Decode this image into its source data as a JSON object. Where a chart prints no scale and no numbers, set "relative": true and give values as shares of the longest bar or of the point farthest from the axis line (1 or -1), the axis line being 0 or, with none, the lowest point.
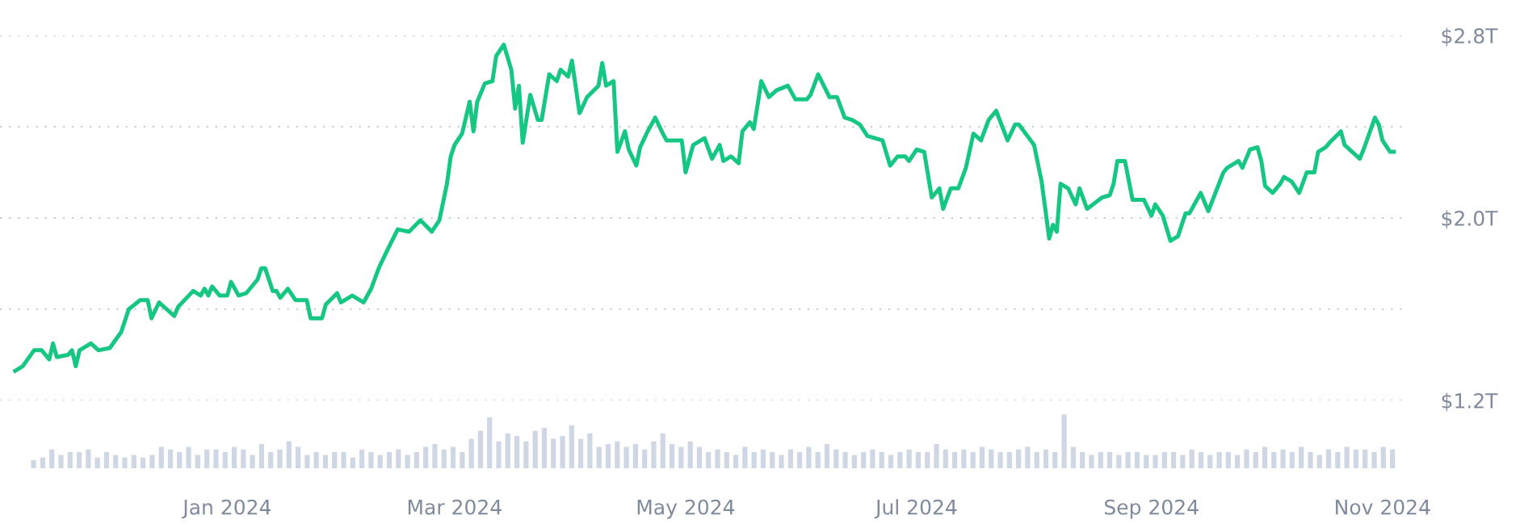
{
  "chart_data": [
    {
      "type": "line",
      "series": [
        {
          "color": "#16c784",
          "x": [
            "2023-11-06",
            "2023-11-08",
            "2023-11-11",
            "2023-11-13",
            "2023-11-15",
            "2023-11-16",
            "2023-11-17",
            "2023-11-20",
            "2023-11-21",
            "2023-11-22",
            "2023-11-23",
            "2023-11-26",
            "2023-11-28",
            "2023-12-01",
            "2023-12-04",
            "2023-12-06",
            "2023-12-09",
            "2023-12-11",
            "2023-12-12",
            "2023-12-14",
            "2023-12-16",
            "2023-12-18",
            "2023-12-19",
            "2023-12-23",
            "2023-12-25",
            "2023-12-26",
            "2023-12-27",
            "2023-12-28",
            "2023-12-30",
            "2024-01-01",
            "2024-01-02",
            "2024-01-04",
            "2024-01-06",
            "2024-01-09",
            "2024-01-10",
            "2024-01-11",
            "2024-01-13",
            "2024-01-14",
            "2024-01-15",
            "2024-01-17",
            "2024-01-19",
            "2024-01-22",
            "2024-01-23",
            "2024-01-26",
            "2024-01-27",
            "2024-01-30",
            "2024-01-31",
            "2024-02-03",
            "2024-02-06",
            "2024-02-08",
            "2024-02-10",
            "2024-02-12",
            "2024-02-15",
            "2024-02-18",
            "2024-02-21",
            "2024-02-24",
            "2024-02-26",
            "2024-02-28",
            "2024-02-29",
            "2024-03-01",
            "2024-03-03",
            "2024-03-05",
            "2024-03-06",
            "2024-03-07",
            "2024-03-09",
            "2024-03-11",
            "2024-03-12",
            "2024-03-14",
            "2024-03-16",
            "2024-03-17",
            "2024-03-18",
            "2024-03-19",
            "2024-03-21",
            "2024-03-23",
            "2024-03-24",
            "2024-03-26",
            "2024-03-28",
            "2024-03-29",
            "2024-03-31",
            "2024-04-01",
            "2024-04-03",
            "2024-04-05",
            "2024-04-08",
            "2024-04-09",
            "2024-04-10",
            "2024-04-12",
            "2024-04-13",
            "2024-04-15",
            "2024-04-16",
            "2024-04-18",
            "2024-04-19",
            "2024-04-21",
            "2024-04-23",
            "2024-04-25",
            "2024-04-26",
            "2024-04-30",
            "2024-05-01",
            "2024-05-03",
            "2024-05-06",
            "2024-05-08",
            "2024-05-10",
            "2024-05-11",
            "2024-05-13",
            "2024-05-15",
            "2024-05-16",
            "2024-05-18",
            "2024-05-19",
            "2024-05-21",
            "2024-05-23",
            "2024-05-25",
            "2024-05-28",
            "2024-05-30",
            "2024-06-02",
            "2024-06-03",
            "2024-06-05",
            "2024-06-08",
            "2024-06-10",
            "2024-06-12",
            "2024-06-14",
            "2024-06-16",
            "2024-06-18",
            "2024-06-22",
            "2024-06-24",
            "2024-06-26",
            "2024-06-28",
            "2024-06-29",
            "2024-07-01",
            "2024-07-03",
            "2024-07-05",
            "2024-07-07",
            "2024-07-08",
            "2024-07-10",
            "2024-07-12",
            "2024-07-14",
            "2024-07-16",
            "2024-07-18",
            "2024-07-20",
            "2024-07-22",
            "2024-07-25",
            "2024-07-27",
            "2024-07-28",
            "2024-08-01",
            "2024-08-03",
            "2024-08-05",
            "2024-08-06",
            "2024-08-07",
            "2024-08-08",
            "2024-08-10",
            "2024-08-12",
            "2024-08-13",
            "2024-08-15",
            "2024-08-19",
            "2024-08-21",
            "2024-08-22",
            "2024-08-23",
            "2024-08-25",
            "2024-08-27",
            "2024-08-30",
            "2024-09-01",
            "2024-09-02",
            "2024-09-04",
            "2024-09-06",
            "2024-09-08",
            "2024-09-10",
            "2024-09-11",
            "2024-09-14",
            "2024-09-16",
            "2024-09-20",
            "2024-09-21",
            "2024-09-24",
            "2024-09-25",
            "2024-09-27",
            "2024-09-29",
            "2024-09-30",
            "2024-10-01",
            "2024-10-03",
            "2024-10-05",
            "2024-10-06",
            "2024-10-08",
            "2024-10-10",
            "2024-10-12",
            "2024-10-14",
            "2024-10-15",
            "2024-10-17",
            "2024-10-18",
            "2024-10-21",
            "2024-10-22",
            "2024-10-24",
            "2024-10-26",
            "2024-10-27",
            "2024-10-30",
            "2024-10-31",
            "2024-11-01",
            "2024-11-03",
            "2024-11-04"
          ],
          "values": [
            1.33,
            1.35,
            1.42,
            1.42,
            1.38,
            1.45,
            1.39,
            1.4,
            1.42,
            1.35,
            1.42,
            1.45,
            1.42,
            1.43,
            1.5,
            1.6,
            1.64,
            1.64,
            1.56,
            1.63,
            1.6,
            1.57,
            1.61,
            1.68,
            1.66,
            1.69,
            1.66,
            1.7,
            1.66,
            1.66,
            1.72,
            1.66,
            1.67,
            1.73,
            1.78,
            1.78,
            1.68,
            1.68,
            1.65,
            1.69,
            1.64,
            1.64,
            1.56,
            1.56,
            1.62,
            1.67,
            1.63,
            1.66,
            1.63,
            1.69,
            1.78,
            1.85,
            1.95,
            1.94,
            1.99,
            1.94,
            1.99,
            2.15,
            2.27,
            2.32,
            2.37,
            2.51,
            2.38,
            2.51,
            2.59,
            2.6,
            2.71,
            2.76,
            2.65,
            2.48,
            2.58,
            2.33,
            2.54,
            2.43,
            2.43,
            2.63,
            2.6,
            2.65,
            2.62,
            2.69,
            2.46,
            2.53,
            2.58,
            2.68,
            2.58,
            2.6,
            2.29,
            2.38,
            2.3,
            2.23,
            2.31,
            2.38,
            2.44,
            2.37,
            2.34,
            2.34,
            2.2,
            2.32,
            2.35,
            2.26,
            2.32,
            2.25,
            2.27,
            2.24,
            2.38,
            2.42,
            2.39,
            2.6,
            2.53,
            2.56,
            2.58,
            2.52,
            2.52,
            2.54,
            2.63,
            2.53,
            2.53,
            2.44,
            2.43,
            2.41,
            2.36,
            2.34,
            2.23,
            2.27,
            2.27,
            2.25,
            2.3,
            2.29,
            2.09,
            2.13,
            2.04,
            2.13,
            2.13,
            2.22,
            2.37,
            2.34,
            2.43,
            2.47,
            2.34,
            2.41,
            2.41,
            2.32,
            2.16,
            1.91,
            1.97,
            1.94,
            2.15,
            2.13,
            2.06,
            2.13,
            2.04,
            2.09,
            2.1,
            2.15,
            2.25,
            2.25,
            2.08,
            2.08,
            2.01,
            2.06,
            2.01,
            1.9,
            1.92,
            2.02,
            2.02,
            2.11,
            2.03,
            2.2,
            2.22,
            2.25,
            2.22,
            2.3,
            2.31,
            2.25,
            2.14,
            2.11,
            2.15,
            2.18,
            2.16,
            2.11,
            2.2,
            2.2,
            2.29,
            2.31,
            2.33,
            2.38,
            2.32,
            2.29,
            2.26,
            2.3,
            2.44,
            2.41,
            2.34,
            2.29,
            2.29
          ]
        }
      ],
      "xlim": [
        "2023-11-02",
        "2024-11-08"
      ],
      "xticks": [
        {
          "value": "2024-01-01",
          "label": "Jan 2024"
        },
        {
          "value": "2024-03-01",
          "label": "Mar 2024"
        },
        {
          "value": "2024-05-01",
          "label": "May 2024"
        },
        {
          "value": "2024-07-01",
          "label": "Jul 2024"
        },
        {
          "value": "2024-09-01",
          "label": "Sep 2024"
        },
        {
          "value": "2024-11-01",
          "label": "Nov 2024"
        }
      ],
      "ylim": [
        1.2,
        2.8
      ],
      "yticks": [
        {
          "value": 1.2,
          "label": "$1.2T"
        },
        {
          "value": 1.6,
          "label": null
        },
        {
          "value": 2.0,
          "label": "$2.0T"
        },
        {
          "value": 2.4,
          "label": null
        },
        {
          "value": 2.8,
          "label": "$2.8T"
        }
      ],
      "grid": "y",
      "marker": "none",
      "line_style": "solid"
    },
    {
      "type": "bar",
      "relative": true,
      "categories": [
        null,
        null,
        null,
        null,
        null,
        null,
        null,
        null,
        null,
        null,
        null,
        null,
        null,
        null,
        null,
        null,
        null,
        null,
        null,
        null,
        null,
        null,
        null,
        null,
        null,
        null,
        null,
        null,
        null,
        null,
        null,
        null,
        null,
        null,
        null,
        null,
        null,
        null,
        null,
        null,
        null,
        null,
        null,
        null,
        null,
        null,
        null,
        null,
        null,
        null,
        null,
        null,
        null,
        null,
        null,
        null,
        null,
        null,
        null,
        null,
        null,
        null,
        null,
        null,
        null,
        null,
        null,
        null,
        null,
        null,
        null,
        null,
        null,
        null,
        null,
        null,
        null,
        null,
        null,
        null,
        null,
        null,
        null,
        null,
        null,
        null,
        null,
        null,
        null,
        null,
        null,
        null,
        null,
        null,
        null,
        null,
        null,
        null,
        null,
        null,
        null,
        null,
        null,
        null,
        null,
        null,
        null,
        null,
        null,
        null,
        null,
        null,
        null,
        null,
        null,
        null,
        null,
        null,
        null,
        null,
        null,
        null,
        null,
        null,
        null,
        null,
        null,
        null,
        null,
        null,
        null,
        null,
        null,
        null,
        null,
        null,
        null,
        null,
        null,
        null,
        null,
        null,
        null,
        null,
        null,
        null,
        null,
        null,
        null,
        null
      ],
      "series": [
        {
          "color": "#cfd6e4",
          "values": [
            0.15,
            0.2,
            0.35,
            0.25,
            0.3,
            0.3,
            0.35,
            0.2,
            0.3,
            0.25,
            0.2,
            0.25,
            0.2,
            0.25,
            0.4,
            0.35,
            0.3,
            0.4,
            0.25,
            0.35,
            0.35,
            0.3,
            0.4,
            0.35,
            0.25,
            0.45,
            0.3,
            0.35,
            0.5,
            0.4,
            0.25,
            0.3,
            0.25,
            0.3,
            0.3,
            0.2,
            0.35,
            0.3,
            0.25,
            0.3,
            0.35,
            0.25,
            0.3,
            0.4,
            0.45,
            0.35,
            0.4,
            0.3,
            0.55,
            0.7,
            0.95,
            0.5,
            0.65,
            0.6,
            0.5,
            0.7,
            0.75,
            0.55,
            0.6,
            0.8,
            0.55,
            0.65,
            0.4,
            0.45,
            0.5,
            0.4,
            0.45,
            0.35,
            0.5,
            0.65,
            0.45,
            0.4,
            0.5,
            0.4,
            0.3,
            0.35,
            0.3,
            0.25,
            0.4,
            0.3,
            0.35,
            0.3,
            0.25,
            0.35,
            0.3,
            0.4,
            0.3,
            0.45,
            0.35,
            0.3,
            0.25,
            0.3,
            0.35,
            0.3,
            0.25,
            0.3,
            0.35,
            0.3,
            0.3,
            0.45,
            0.35,
            0.3,
            0.35,
            0.3,
            0.4,
            0.35,
            0.3,
            0.3,
            0.35,
            0.4,
            0.3,
            0.35,
            0.3,
            1.0,
            0.4,
            0.3,
            0.25,
            0.3,
            0.3,
            0.25,
            0.3,
            0.3,
            0.25,
            0.25,
            0.3,
            0.3,
            0.25,
            0.35,
            0.3,
            0.25,
            0.3,
            0.3,
            0.25,
            0.35,
            0.3,
            0.4,
            0.3,
            0.35,
            0.3,
            0.4,
            0.3,
            0.25,
            0.35,
            0.3,
            0.4,
            0.35,
            0.35,
            0.3,
            0.4,
            0.35
          ]
        }
      ]
    }
  ]
}
